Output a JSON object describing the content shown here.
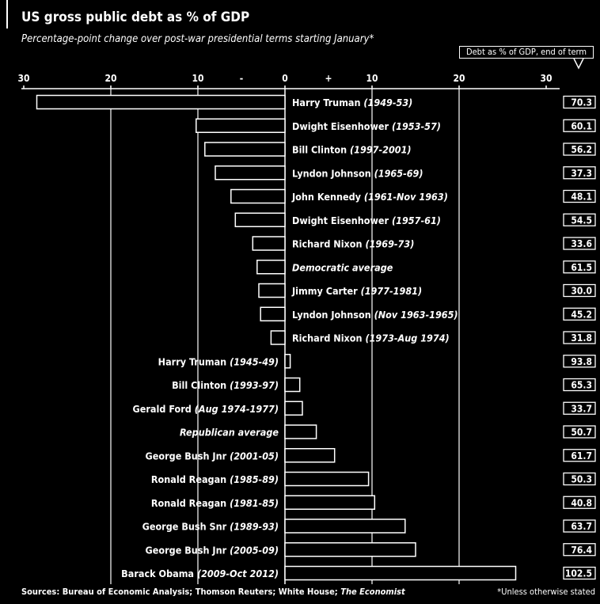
{
  "header": {
    "title": "US gross public debt as % of GDP",
    "subtitle": "Percentage-point change over post-war presidential terms starting January*",
    "legend_label": "Debt as % of GDP, end of term"
  },
  "footer": {
    "source_prefix": "Sources: Bureau of Economic Analysis; Thomson Reuters; White House; ",
    "source_italic": "The Economist",
    "note": "*Unless otherwise stated"
  },
  "chart_data": {
    "type": "bar",
    "orientation": "horizontal",
    "xlim": [
      -30,
      30
    ],
    "x_ticks": [
      "30",
      "20",
      "10",
      "-",
      "0",
      "+",
      "10",
      "20",
      "30"
    ],
    "rows": [
      {
        "name": "Harry Truman",
        "term": "(1949-53)",
        "change": -28.5,
        "end_of_term": "70.3"
      },
      {
        "name": "Dwight Eisenhower",
        "term": "(1953-57)",
        "change": -10.2,
        "end_of_term": "60.1"
      },
      {
        "name": "Bill Clinton",
        "term": "(1997-2001)",
        "change": -9.2,
        "end_of_term": "56.2"
      },
      {
        "name": "Lyndon Johnson",
        "term": "(1965-69)",
        "change": -8.0,
        "end_of_term": "37.3"
      },
      {
        "name": "John Kennedy",
        "term": "(1961-Nov 1963)",
        "change": -6.2,
        "end_of_term": "48.1"
      },
      {
        "name": "Dwight Eisenhower",
        "term": "(1957-61)",
        "change": -5.7,
        "end_of_term": "54.5"
      },
      {
        "name": "Richard Nixon",
        "term": "(1969-73)",
        "change": -3.7,
        "end_of_term": "33.6"
      },
      {
        "name": "Democratic average",
        "term": "",
        "change": -3.2,
        "end_of_term": "61.5",
        "average": true
      },
      {
        "name": "Jimmy Carter",
        "term": "(1977-1981)",
        "change": -3.0,
        "end_of_term": "30.0"
      },
      {
        "name": "Lyndon Johnson",
        "term": "(Nov 1963-1965)",
        "change": -2.8,
        "end_of_term": "45.2"
      },
      {
        "name": "Richard Nixon",
        "term": "(1973-Aug 1974)",
        "change": -1.6,
        "end_of_term": "31.8"
      },
      {
        "name": "Harry Truman",
        "term": "(1945-49)",
        "change": 0.6,
        "end_of_term": "93.8"
      },
      {
        "name": "Bill Clinton",
        "term": "(1993-97)",
        "change": 1.7,
        "end_of_term": "65.3"
      },
      {
        "name": "Gerald Ford",
        "term": "(Aug 1974-1977)",
        "change": 2.0,
        "end_of_term": "33.7"
      },
      {
        "name": "Republican average",
        "term": "",
        "change": 3.6,
        "end_of_term": "50.7",
        "average": true
      },
      {
        "name": "George Bush Jnr",
        "term": "(2001-05)",
        "change": 5.7,
        "end_of_term": "61.7"
      },
      {
        "name": "Ronald Reagan",
        "term": "(1985-89)",
        "change": 9.6,
        "end_of_term": "50.3"
      },
      {
        "name": "Ronald Reagan",
        "term": "(1981-85)",
        "change": 10.3,
        "end_of_term": "40.8"
      },
      {
        "name": "George Bush Snr",
        "term": "(1989-93)",
        "change": 13.8,
        "end_of_term": "63.7"
      },
      {
        "name": "George Bush Jnr",
        "term": "(2005-09)",
        "change": 15.0,
        "end_of_term": "76.4"
      },
      {
        "name": "Barack Obama",
        "term": "(2009-Oct 2012)",
        "change": 26.5,
        "end_of_term": "102.5"
      }
    ]
  }
}
